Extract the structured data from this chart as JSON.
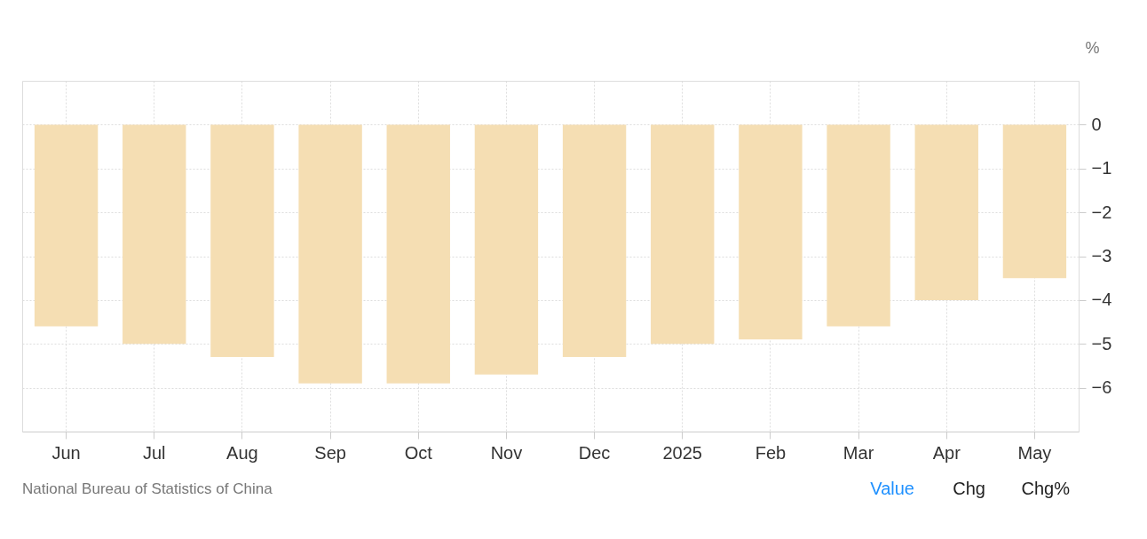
{
  "chart_data": {
    "type": "bar",
    "ylabel": "%",
    "categories": [
      "Jun",
      "Jul",
      "Aug",
      "Sep",
      "Oct",
      "Nov",
      "Dec",
      "2025",
      "Feb",
      "Mar",
      "Apr",
      "May"
    ],
    "values": [
      -4.6,
      -5.0,
      -5.3,
      -5.9,
      -5.9,
      -5.7,
      -5.3,
      -5.0,
      -4.9,
      -4.6,
      -4.0,
      -3.5
    ],
    "color": "#f5deb3",
    "ylim": [
      -7,
      1
    ],
    "yticks": [
      0,
      -1,
      -2,
      -3,
      -4,
      -5,
      -6
    ],
    "grid": true,
    "annotations": [
      "National Bureau of Statistics of China",
      "Value",
      "Chg",
      "Chg%"
    ]
  }
}
